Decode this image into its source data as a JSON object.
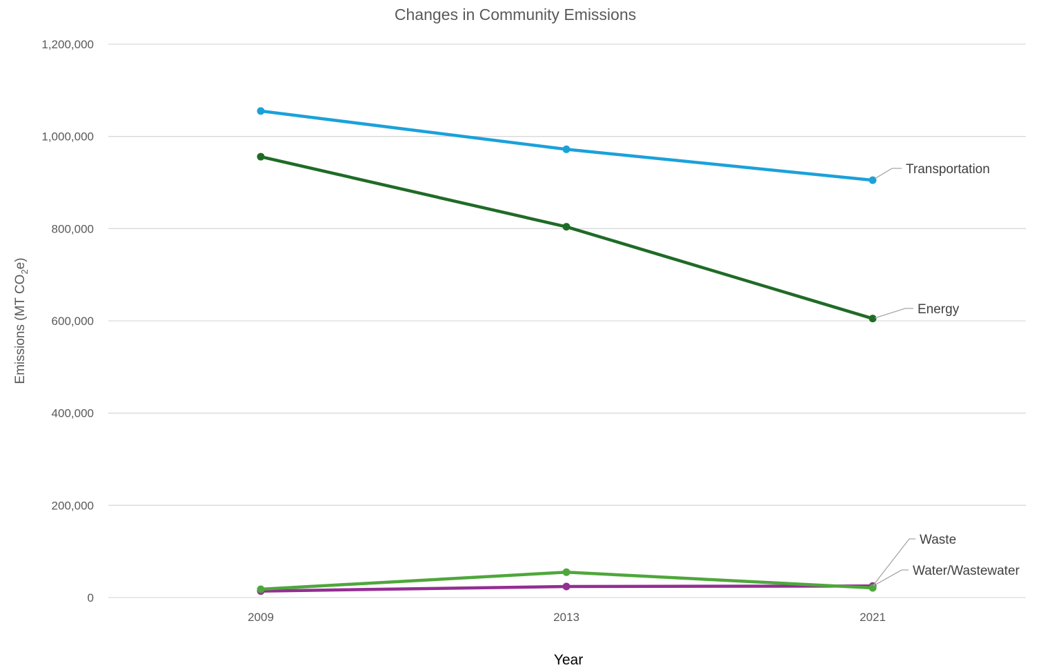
{
  "chart_data": {
    "type": "line",
    "title": "Changes in Community Emissions",
    "xlabel": "Year",
    "ylabel_parts": [
      "Emissions (MT CO",
      "2",
      "e)"
    ],
    "categories": [
      "2009",
      "2013",
      "2021"
    ],
    "ylim": [
      0,
      1200000
    ],
    "yticks": [
      0,
      200000,
      400000,
      600000,
      800000,
      1000000,
      1200000
    ],
    "ytick_labels": [
      "0",
      "200,000",
      "400,000",
      "600,000",
      "800,000",
      "1,000,000",
      "1,200,000"
    ],
    "grid": true,
    "series": [
      {
        "name": "Transportation",
        "color": "#1ba1d9",
        "values": [
          1055000,
          972000,
          905000
        ]
      },
      {
        "name": "Energy",
        "color": "#1f6b26",
        "values": [
          956000,
          804000,
          605000
        ]
      },
      {
        "name": "Waste",
        "color": "#932e92",
        "values": [
          14000,
          24000,
          25000
        ]
      },
      {
        "name": "Water/Wastewater",
        "color": "#4ea73b",
        "values": [
          18000,
          55000,
          21000
        ]
      }
    ],
    "label_color": "#a6a6a6",
    "grid_color": "#d9d9d9"
  }
}
